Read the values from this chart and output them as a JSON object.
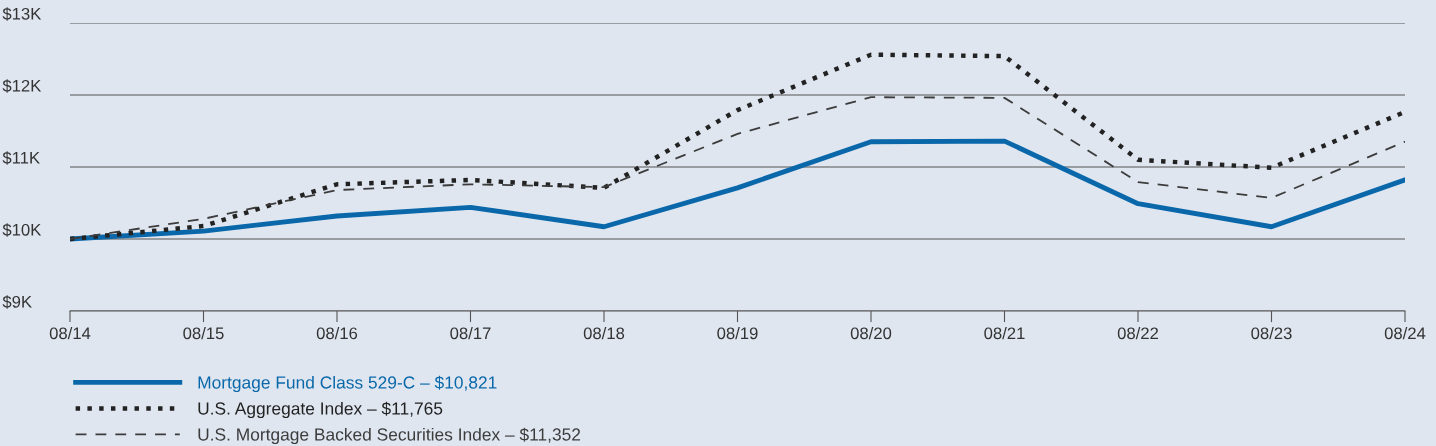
{
  "chart_data": {
    "type": "line",
    "categories": [
      "08/14",
      "08/15",
      "08/16",
      "08/17",
      "08/18",
      "08/19",
      "08/20",
      "08/21",
      "08/22",
      "08/23",
      "08/24"
    ],
    "series": [
      {
        "name": "Mortgage Fund Class 529-C – $10,821",
        "color": "#0a68aa",
        "line_style": "solid",
        "values": [
          10000,
          10110,
          10320,
          10440,
          10170,
          10710,
          11350,
          11360,
          10490,
          10170,
          10821
        ]
      },
      {
        "name": "U.S. Aggregate Index – $11,765",
        "color": "#222222",
        "line_style": "dotted",
        "values": [
          10000,
          10180,
          10760,
          10820,
          10710,
          11790,
          12560,
          12540,
          11100,
          10990,
          11765
        ]
      },
      {
        "name": "U.S. Mortgage Backed Securities Index – $11,352",
        "color": "#3c3c3c",
        "line_style": "dashed",
        "values": [
          10000,
          10280,
          10680,
          10760,
          10720,
          11460,
          11970,
          11960,
          10790,
          10570,
          11352
        ]
      }
    ],
    "ylim": [
      9000,
      13000
    ],
    "yticks": [
      {
        "value": 9000,
        "label": "$9K"
      },
      {
        "value": 10000,
        "label": "$10K"
      },
      {
        "value": 11000,
        "label": "$11K"
      },
      {
        "value": 12000,
        "label": "$12K"
      },
      {
        "value": 13000,
        "label": "$13K"
      }
    ],
    "grid": "y",
    "legend": "bottom",
    "marker": "none"
  }
}
